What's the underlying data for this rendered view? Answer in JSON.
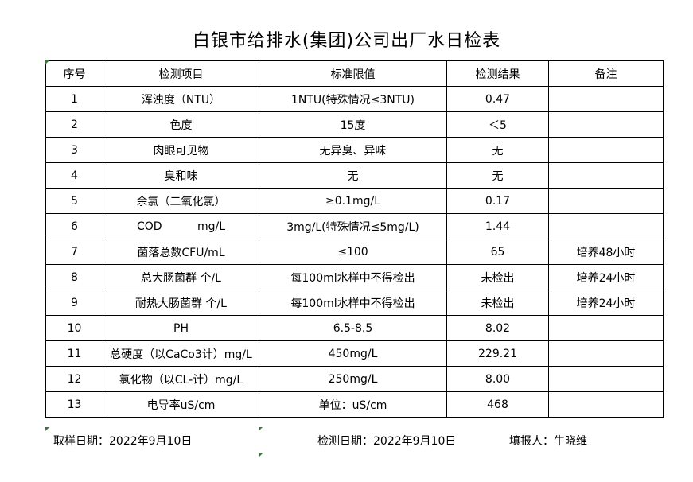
{
  "title": "白银市给排水(集团)公司出厂水日检表",
  "headers": [
    "序号",
    "检测项目",
    "标准限值",
    "检测结果",
    "备注"
  ],
  "rows": [
    [
      "1",
      "浑浊度（NTU）",
      "1NTU(特殊情况≤3NTU)",
      "0.47",
      ""
    ],
    [
      "2",
      "色度",
      "15度",
      "＜5",
      ""
    ],
    [
      "3",
      "肉眼可见物",
      "无异臭、异味",
      "无",
      ""
    ],
    [
      "4",
      "臭和味",
      "无",
      "无",
      ""
    ],
    [
      "5",
      "余氯（二氧化氯）",
      "≥0.1mg/L",
      "0.17",
      ""
    ],
    [
      "6",
      "COD          mg/L",
      "3mg/L(特殊情况≤5mg/L)",
      "1.44",
      ""
    ],
    [
      "7",
      "菌落总数CFU/mL",
      "≤100",
      "65",
      "培养48小时"
    ],
    [
      "8",
      "总大肠菌群 个/L",
      "每100ml水样中不得检出",
      "未检出",
      "培养24小时"
    ],
    [
      "9",
      "耐热大肠菌群 个/L",
      "每100ml水样中不得检出",
      "未检出",
      "培养24小时"
    ],
    [
      "10",
      "PH",
      "6.5-8.5",
      "8.02",
      ""
    ],
    [
      "11",
      "总硬度（以CaCo3计）mg/L",
      "450mg/L",
      "229.21",
      ""
    ],
    [
      "12",
      "氯化物（以CL-计）mg/L",
      "250mg/L",
      "8.00",
      ""
    ],
    [
      "13",
      "电导率uS/cm",
      "单位：uS/cm",
      "468",
      ""
    ]
  ],
  "footer": {
    "sampling_date": "取样日期：2022年9月10日",
    "test_date": "检测日期：2022年9月10日",
    "reporter": "填报人：牛晓维"
  }
}
